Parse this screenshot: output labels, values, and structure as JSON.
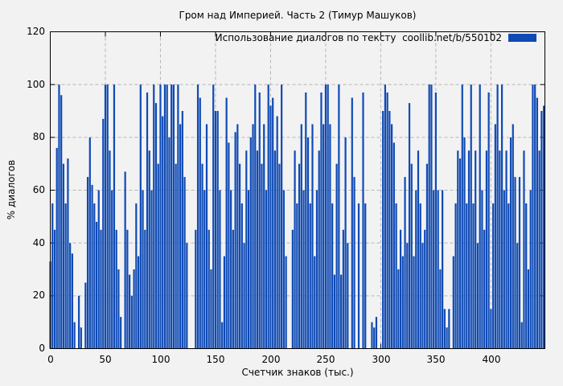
{
  "title": "Гром над Империей. Часть 2 (Тимур Машуков)",
  "legend": {
    "label": "Использование диалогов по тексту  coollib.net/b/550102",
    "swatch_color": "#0f4ab4"
  },
  "axes": {
    "y_label": "% диалогов",
    "x_label": "Счетчик знаков (тыс.)",
    "y_ticks": [
      "0",
      "20",
      "40",
      "60",
      "80",
      "100",
      "120"
    ],
    "x_ticks": [
      "0",
      "50",
      "100",
      "150",
      "200",
      "250",
      "300",
      "350",
      "400"
    ]
  },
  "colors": {
    "background": "#f2f2f2",
    "bar": "#0f4ab4",
    "grid": "#b5b5b5",
    "frame": "#000000"
  },
  "chart_data": {
    "type": "bar",
    "title": "Гром над Империей. Часть 2 (Тимур Машуков)",
    "xlabel": "Счетчик знаков (тыс.)",
    "ylabel": "% диалогов",
    "xlim": [
      0,
      449
    ],
    "ylim": [
      0,
      120
    ],
    "x_tick_values": [
      0,
      50,
      100,
      150,
      200,
      250,
      300,
      350,
      400
    ],
    "y_tick_values": [
      0,
      20,
      40,
      60,
      80,
      100,
      120
    ],
    "grid": true,
    "legend_position": "top-right",
    "bar_color": "#0f4ab4",
    "series": [
      {
        "name": "Использование диалогов по тексту  coollib.net/b/550102",
        "x_start": 0,
        "x_step": 2,
        "values": [
          33,
          55,
          45,
          76,
          100,
          96,
          70,
          55,
          72,
          40,
          36,
          10,
          0,
          20,
          8,
          0,
          25,
          65,
          80,
          62,
          55,
          48,
          60,
          45,
          87,
          100,
          100,
          75,
          60,
          100,
          45,
          30,
          12,
          0,
          67,
          45,
          28,
          20,
          30,
          55,
          35,
          100,
          60,
          45,
          97,
          75,
          60,
          100,
          93,
          70,
          100,
          88,
          100,
          100,
          80,
          100,
          100,
          70,
          100,
          85,
          90,
          65,
          40,
          0,
          0,
          0,
          45,
          100,
          95,
          70,
          60,
          85,
          45,
          30,
          100,
          90,
          90,
          60,
          10,
          35,
          95,
          78,
          60,
          45,
          82,
          85,
          70,
          55,
          40,
          75,
          60,
          80,
          85,
          100,
          75,
          97,
          70,
          85,
          60,
          100,
          92,
          95,
          75,
          88,
          70,
          100,
          60,
          35,
          0,
          0,
          45,
          75,
          55,
          70,
          85,
          60,
          97,
          80,
          55,
          85,
          35,
          60,
          75,
          97,
          85,
          100,
          100,
          85,
          55,
          28,
          70,
          100,
          28,
          45,
          80,
          40,
          0,
          95,
          65,
          0,
          55,
          0,
          97,
          55,
          0,
          0,
          10,
          8,
          12,
          0,
          0,
          90,
          100,
          97,
          90,
          85,
          78,
          55,
          30,
          45,
          35,
          65,
          40,
          93,
          70,
          35,
          60,
          75,
          55,
          40,
          45,
          70,
          100,
          100,
          60,
          97,
          60,
          30,
          60,
          15,
          8,
          15,
          0,
          35,
          55,
          75,
          72,
          100,
          80,
          55,
          75,
          100,
          55,
          75,
          40,
          100,
          60,
          45,
          75,
          97,
          15,
          55,
          85,
          100,
          75,
          100,
          60,
          75,
          55,
          80,
          85,
          65,
          40,
          65,
          10,
          75,
          55,
          30,
          60,
          100,
          100,
          95,
          75,
          90,
          92
        ]
      }
    ]
  }
}
